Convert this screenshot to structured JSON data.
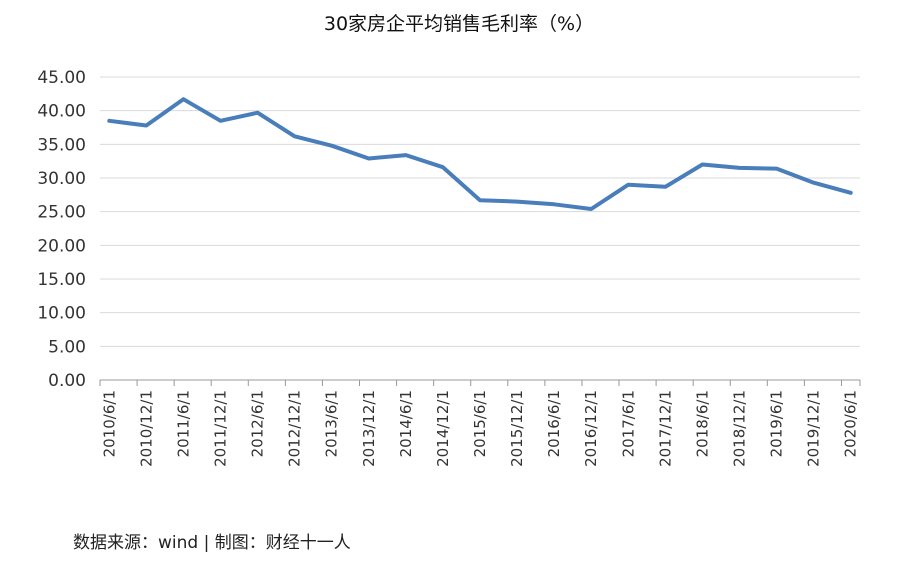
{
  "chart_data": {
    "type": "line",
    "title": "30家房企平均销售毛利率（%）",
    "ylim": [
      0,
      45
    ],
    "yticks": [
      "0.00",
      "5.00",
      "10.00",
      "15.00",
      "20.00",
      "25.00",
      "30.00",
      "35.00",
      "40.00",
      "45.00"
    ],
    "grid": true,
    "legend": "none",
    "categories": [
      "2010/6/1",
      "2010/12/1",
      "2011/6/1",
      "2011/12/1",
      "2012/6/1",
      "2012/12/1",
      "2013/6/1",
      "2013/12/1",
      "2014/6/1",
      "2014/12/1",
      "2015/6/1",
      "2015/12/1",
      "2016/6/1",
      "2016/12/1",
      "2017/6/1",
      "2017/12/1",
      "2018/6/1",
      "2018/12/1",
      "2019/6/1",
      "2019/12/1",
      "2020/6/1"
    ],
    "series": [
      {
        "values": [
          38.5,
          37.8,
          41.7,
          38.5,
          39.7,
          36.2,
          34.8,
          32.9,
          33.4,
          31.6,
          26.7,
          26.5,
          26.1,
          25.4,
          29.0,
          28.7,
          32.0,
          31.5,
          31.4,
          29.3,
          27.8
        ],
        "color": "#4a7ebb"
      }
    ],
    "source": "数据来源：wind | 制图：财经十一人"
  }
}
